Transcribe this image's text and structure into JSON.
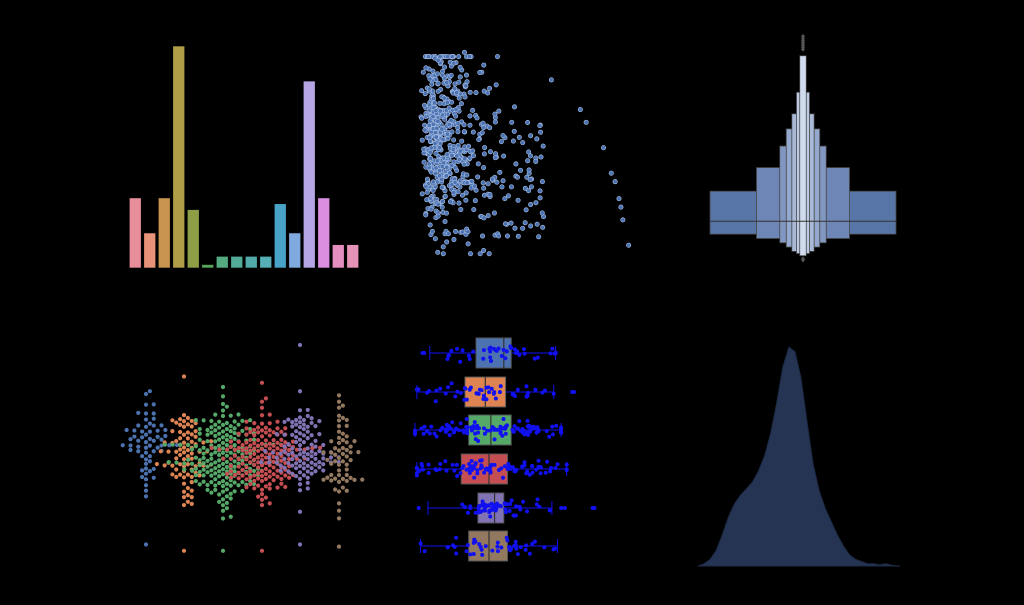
{
  "figure": {
    "background": "#000000"
  },
  "chart_data": [
    {
      "type": "bar",
      "title": "",
      "xlabel": "",
      "ylabel": "",
      "grid": false,
      "legend": "none",
      "ylim": [
        0,
        19
      ],
      "values": [
        6,
        3,
        6,
        19,
        5,
        0.3,
        1,
        1,
        1,
        1,
        5.5,
        3,
        16,
        6,
        2,
        2
      ],
      "colors": [
        "#e88d9a",
        "#e8927a",
        "#c8944f",
        "#b09d48",
        "#8e9e45",
        "#57a357",
        "#55ab7f",
        "#52ab96",
        "#52a9a9",
        "#56aeb7",
        "#49a3c9",
        "#80a9e0",
        "#b6a6e6",
        "#d98ee0",
        "#e58fc0",
        "#e693b8"
      ]
    },
    {
      "type": "scatter",
      "title": "",
      "xlabel": "",
      "ylabel": "",
      "grid": false,
      "legend": "none",
      "color": "#4c72b0",
      "xlim": [
        0,
        100
      ],
      "ylim": [
        0,
        100
      ],
      "outliers": [
        [
          23,
          97
        ],
        [
          33,
          91
        ],
        [
          68,
          84
        ],
        [
          83,
          70
        ],
        [
          86,
          64
        ],
        [
          95,
          52
        ],
        [
          99,
          40
        ],
        [
          101,
          36
        ],
        [
          103,
          28
        ],
        [
          104,
          24
        ],
        [
          105,
          18
        ],
        [
          108,
          6
        ],
        [
          36,
          80
        ],
        [
          29,
          78
        ]
      ]
    },
    {
      "type": "boxen",
      "title": "",
      "xlabel": "",
      "ylabel": "",
      "grid": false,
      "legend": "none",
      "color": "#5875a8",
      "ylim": [
        0,
        100
      ],
      "levels": [
        {
          "low": 12,
          "high": 32,
          "width": 1.0
        },
        {
          "low": 10,
          "high": 43,
          "width": 0.5
        },
        {
          "low": 8,
          "high": 53,
          "width": 0.25
        },
        {
          "low": 6,
          "high": 61,
          "width": 0.18
        },
        {
          "low": 4,
          "high": 68,
          "width": 0.12
        },
        {
          "low": 3,
          "high": 78,
          "width": 0.07
        },
        {
          "low": 2,
          "high": 95,
          "width": 0.035
        }
      ],
      "median": 18,
      "outliers": [
        98,
        99,
        100,
        101,
        102,
        103,
        104,
        0.5,
        0
      ]
    },
    {
      "type": "swarm",
      "title": "",
      "xlabel": "",
      "ylabel": "",
      "grid": false,
      "legend": "none",
      "ylim": [
        0,
        100
      ],
      "groups": [
        {
          "color": "#4c72b0",
          "count": 60,
          "center": 52,
          "spread": 18,
          "min": 5,
          "max": 78
        },
        {
          "color": "#dd8452",
          "count": 80,
          "center": 46,
          "spread": 20,
          "min": 2,
          "max": 85
        },
        {
          "color": "#55a868",
          "count": 200,
          "center": 47,
          "spread": 20,
          "min": 2,
          "max": 80
        },
        {
          "color": "#c44e52",
          "count": 170,
          "center": 46,
          "spread": 18,
          "min": 2,
          "max": 82
        },
        {
          "color": "#8172b3",
          "count": 110,
          "center": 48,
          "spread": 18,
          "min": 5,
          "max": 100
        },
        {
          "color": "#937860",
          "count": 60,
          "center": 48,
          "spread": 19,
          "min": 4,
          "max": 76
        }
      ]
    },
    {
      "type": "box",
      "title": "",
      "xlabel": "",
      "ylabel": "",
      "grid": false,
      "legend": "none",
      "xlim": [
        0,
        100
      ],
      "point_color": "#1010f0",
      "boxes": [
        {
          "color": "#4c72b0",
          "q1": 33,
          "median": 48,
          "q3": 52,
          "wlow": 8,
          "whigh": 76,
          "fliers": [
            4,
            5
          ]
        },
        {
          "color": "#dd8452",
          "q1": 27,
          "median": 38,
          "q3": 49,
          "wlow": 1,
          "whigh": 75,
          "fliers": [
            85,
            86
          ]
        },
        {
          "color": "#55a868",
          "q1": 29,
          "median": 41,
          "q3": 52,
          "wlow": 0,
          "whigh": 79,
          "fliers": []
        },
        {
          "color": "#c44e52",
          "q1": 25,
          "median": 40,
          "q3": 50,
          "wlow": 1,
          "whigh": 82,
          "fliers": []
        },
        {
          "color": "#8172b3",
          "q1": 34,
          "median": 43,
          "q3": 48,
          "wlow": 7,
          "whigh": 74,
          "fliers": [
            2,
            79,
            81,
            96,
            97
          ]
        },
        {
          "color": "#937860",
          "q1": 29,
          "median": 40,
          "q3": 50,
          "wlow": 3,
          "whigh": 77,
          "fliers": []
        }
      ]
    },
    {
      "type": "area",
      "title": "",
      "xlabel": "",
      "ylabel": "",
      "grid": false,
      "legend": "none",
      "color": "#253453",
      "edge_color": "#1e2a44",
      "xlim": [
        0,
        100
      ],
      "ylim": [
        0,
        100
      ],
      "x": [
        0,
        3,
        6,
        9,
        12,
        15,
        18,
        21,
        24,
        27,
        30,
        33,
        36,
        39,
        42,
        45,
        48,
        51,
        54,
        57,
        60,
        63,
        66,
        69,
        72,
        75,
        78,
        81,
        84,
        87,
        90,
        93,
        96,
        100
      ],
      "y": [
        0,
        1,
        3,
        7,
        14,
        22,
        28,
        32,
        35,
        38,
        43,
        50,
        60,
        74,
        90,
        99,
        97,
        85,
        65,
        46,
        34,
        26,
        20,
        14,
        9,
        5,
        3,
        2,
        1,
        1,
        0.5,
        1,
        0.3,
        0
      ]
    }
  ]
}
